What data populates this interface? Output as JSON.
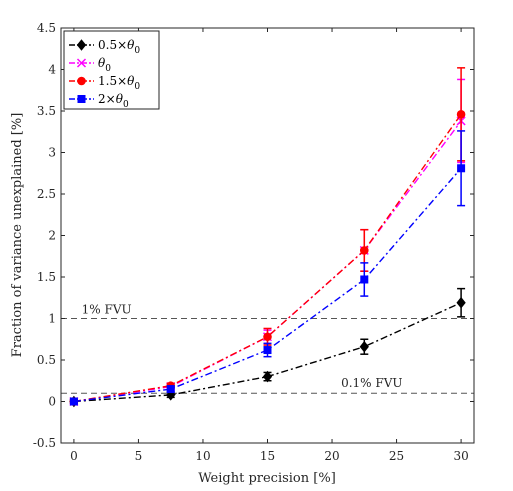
{
  "chart_data": {
    "type": "line",
    "xlabel": "Weight precision [%]",
    "ylabel": "Fraction of variance unexplained [%]",
    "xlim": [
      -1,
      31
    ],
    "ylim": [
      -0.5,
      4.5
    ],
    "xticks": [
      0,
      5,
      10,
      15,
      20,
      25,
      30
    ],
    "yticks": [
      -0.5,
      0,
      0.5,
      1,
      1.5,
      2,
      2.5,
      3,
      3.5,
      4,
      4.5
    ],
    "x": [
      0,
      7.5,
      15,
      22.5,
      30
    ],
    "series": [
      {
        "name": "0.5×θ0",
        "legend_main": "0.5×",
        "legend_sym": "θ",
        "legend_sub": "0",
        "color": "#000000",
        "marker": "diamond",
        "values": [
          0.0,
          0.08,
          0.3,
          0.66,
          1.19
        ],
        "errors": [
          0.02,
          0.03,
          0.05,
          0.09,
          0.17
        ]
      },
      {
        "name": "θ0",
        "legend_main": "",
        "legend_sym": "θ",
        "legend_sub": "0",
        "color": "#ff00ff",
        "marker": "x",
        "values": [
          0.0,
          0.18,
          0.78,
          1.82,
          3.38
        ],
        "errors": [
          0.02,
          0.03,
          0.08,
          0.25,
          0.5
        ]
      },
      {
        "name": "1.5×θ0",
        "legend_main": "1.5×",
        "legend_sym": "θ",
        "legend_sub": "0",
        "color": "#ff0000",
        "marker": "circle",
        "values": [
          0.0,
          0.19,
          0.78,
          1.82,
          3.46
        ],
        "errors": [
          0.02,
          0.03,
          0.1,
          0.25,
          0.56
        ]
      },
      {
        "name": "2×θ0",
        "legend_main": "2×",
        "legend_sym": "θ",
        "legend_sub": "0",
        "color": "#0000ff",
        "marker": "square",
        "values": [
          0.0,
          0.15,
          0.62,
          1.47,
          2.81
        ],
        "errors": [
          0.02,
          0.03,
          0.08,
          0.2,
          0.45
        ]
      }
    ],
    "reference_lines": [
      {
        "y": 1.0,
        "label": "1% FVU"
      },
      {
        "y": 0.1,
        "label": "0.1% FVU"
      }
    ],
    "legend_position": "top-left",
    "grid": false
  }
}
